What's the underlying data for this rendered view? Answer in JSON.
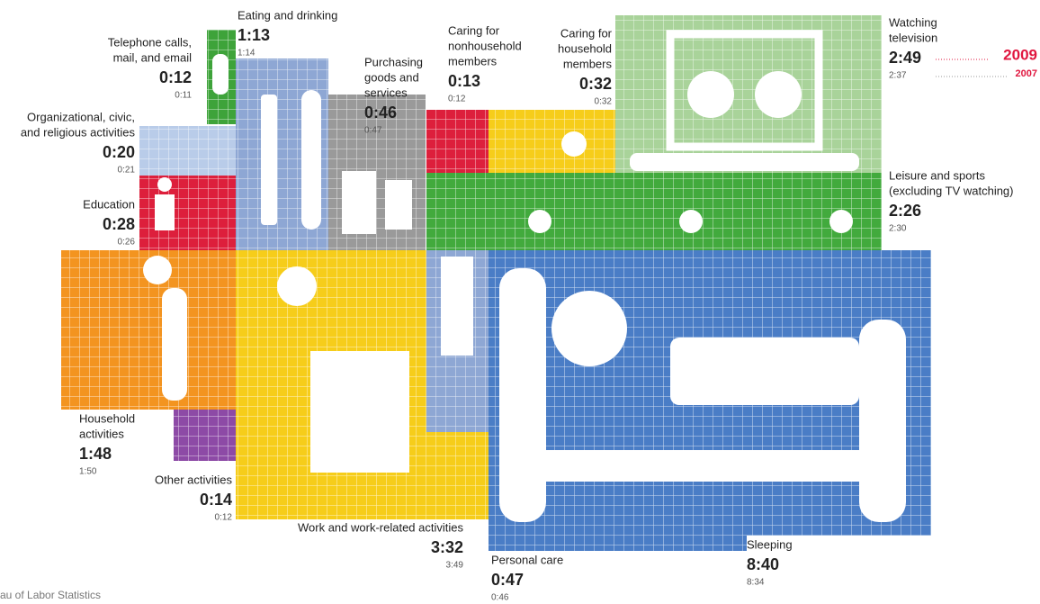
{
  "activities": [
    {
      "label": [
        "Telephone calls,",
        "mail, and email"
      ],
      "value": "0:12",
      "previous": "0:11"
    },
    {
      "label": [
        "Eating and drinking"
      ],
      "value": "1:13",
      "previous": "1:14"
    },
    {
      "label": [
        "Purchasing",
        "goods and",
        "services"
      ],
      "value": "0:46",
      "previous": "0:47"
    },
    {
      "label": [
        "Organizational, civic,",
        "and religious activities"
      ],
      "value": "0:20",
      "previous": "0:21"
    },
    {
      "label": [
        "Education"
      ],
      "value": "0:28",
      "previous": "0:26"
    },
    {
      "label": [
        "Caring for",
        "nonhousehold",
        "members"
      ],
      "value": "0:13",
      "previous": "0:12"
    },
    {
      "label": [
        "Caring for",
        "household",
        "members"
      ],
      "value": "0:32",
      "previous": "0:32"
    },
    {
      "label": [
        "Watching",
        "television"
      ],
      "value": "2:49",
      "previous": "2:37"
    },
    {
      "label": [
        "Leisure and sports",
        "(excluding TV watching)"
      ],
      "value": "2:26",
      "previous": "2:30"
    },
    {
      "label": [
        "Household",
        "activities"
      ],
      "value": "1:48",
      "previous": "1:50"
    },
    {
      "label": [
        "Other activities"
      ],
      "value": "0:14",
      "previous": "0:12"
    },
    {
      "label": [
        "Work and work-related activities"
      ],
      "value": "3:32",
      "previous": "3:49"
    },
    {
      "label": [
        "Personal care"
      ],
      "value": "0:47",
      "previous": "0:46"
    },
    {
      "label": [
        "Sleeping"
      ],
      "value": "8:40",
      "previous": "8:34"
    }
  ],
  "legend": {
    "current": "2009",
    "previous": "2007"
  },
  "source": "au of Labor Statistics"
}
